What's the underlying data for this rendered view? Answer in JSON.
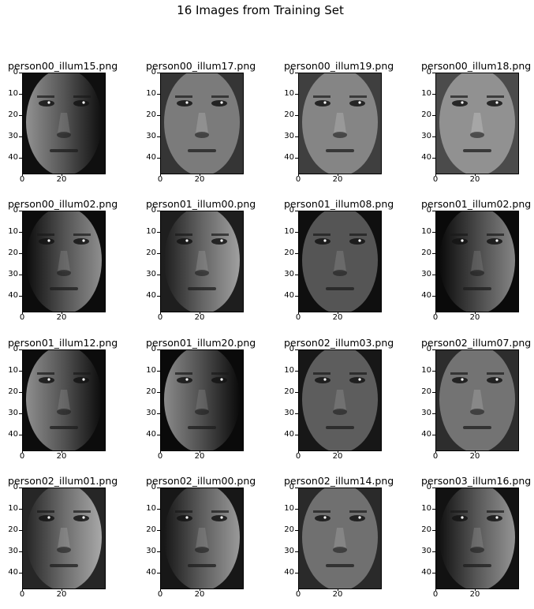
{
  "figure": {
    "title": "16 Images from Training Set"
  },
  "axes_common": {
    "yticks": [
      "0",
      "10",
      "20",
      "30",
      "40"
    ],
    "xticks": [
      "0",
      "20"
    ]
  },
  "chart_data": {
    "type": "image_grid",
    "title": "16 Images from Training Set",
    "rows": 4,
    "cols": 4,
    "xlim": [
      0,
      42
    ],
    "ylim": [
      48,
      0
    ],
    "yticks": [
      0,
      10,
      20,
      30,
      40
    ],
    "xticks": [
      0,
      20
    ],
    "colormap": "gray",
    "panels": [
      {
        "title": "person00_illum15.png",
        "brightness": 0.3,
        "light": "left"
      },
      {
        "title": "person00_illum17.png",
        "brightness": 0.55,
        "light": "front"
      },
      {
        "title": "person00_illum19.png",
        "brightness": 0.62,
        "light": "front"
      },
      {
        "title": "person00_illum18.png",
        "brightness": 0.7,
        "light": "front"
      },
      {
        "title": "person00_illum02.png",
        "brightness": 0.28,
        "light": "right"
      },
      {
        "title": "person01_illum00.png",
        "brightness": 0.4,
        "light": "right"
      },
      {
        "title": "person01_illum08.png",
        "brightness": 0.3,
        "light": "front"
      },
      {
        "title": "person01_illum02.png",
        "brightness": 0.22,
        "light": "right"
      },
      {
        "title": "person01_illum12.png",
        "brightness": 0.28,
        "light": "left"
      },
      {
        "title": "person01_illum20.png",
        "brightness": 0.25,
        "light": "left"
      },
      {
        "title": "person02_illum03.png",
        "brightness": 0.35,
        "light": "front"
      },
      {
        "title": "person02_illum07.png",
        "brightness": 0.5,
        "light": "front"
      },
      {
        "title": "person02_illum01.png",
        "brightness": 0.45,
        "light": "right"
      },
      {
        "title": "person02_illum00.png",
        "brightness": 0.35,
        "light": "right"
      },
      {
        "title": "person02_illum14.png",
        "brightness": 0.48,
        "light": "front"
      },
      {
        "title": "person03_illum16.png",
        "brightness": 0.32,
        "light": "right"
      }
    ]
  }
}
